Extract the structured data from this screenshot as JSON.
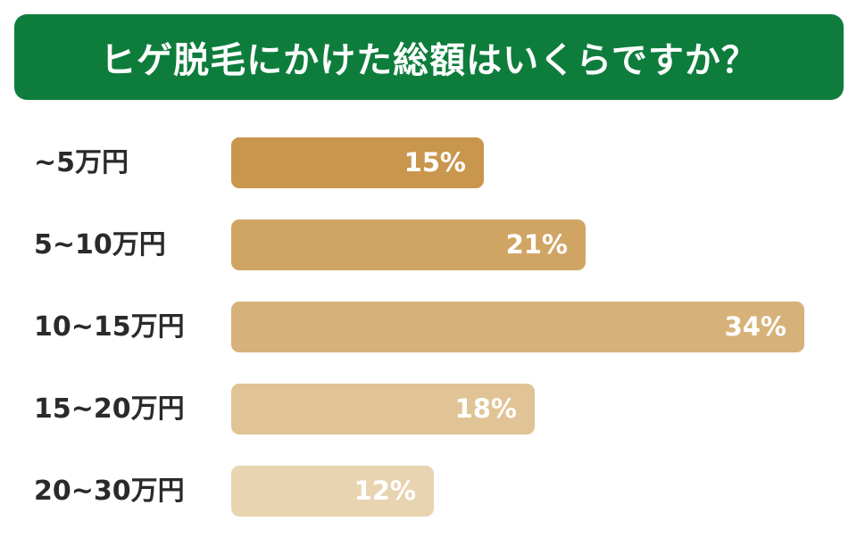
{
  "chart_data": {
    "type": "bar",
    "orientation": "horizontal",
    "title": "ヒゲ脱毛にかけた総額はいくらですか？",
    "categories": [
      "~5万円",
      "5~10万円",
      "10~15万円",
      "15~20万円",
      "20~30万円"
    ],
    "values": [
      15,
      21,
      34,
      18,
      12
    ],
    "value_labels": [
      "15%",
      "21%",
      "34%",
      "18%",
      "12%"
    ],
    "unit": "%",
    "xlim": [
      0,
      34
    ],
    "grid": false,
    "legend": "none"
  },
  "colors": {
    "title_bg": "#0e7d3c",
    "bars": [
      "#c9964e",
      "#d0a564",
      "#d6b27a",
      "#e0c495",
      "#e8d4b0"
    ]
  }
}
